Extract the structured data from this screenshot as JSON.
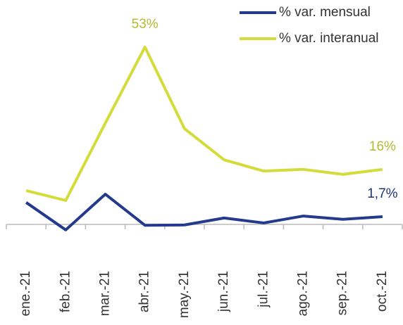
{
  "chart_data": {
    "type": "line",
    "categories": [
      "ene.-21",
      "feb.-21",
      "mar.-21",
      "abr.-21",
      "may.-21",
      "jun.-21",
      "jul.-21",
      "ago.-21",
      "sep.-21",
      "oct.-21"
    ],
    "series": [
      {
        "name": "% var. mensual",
        "color": "#243a8c",
        "values": [
          6,
          -2.3,
          8.5,
          -0.9,
          -0.8,
          1.3,
          -0.2,
          1.9,
          0.9,
          1.7
        ],
        "value_labels": [
          null,
          null,
          null,
          null,
          null,
          null,
          null,
          null,
          null,
          "1,7%"
        ]
      },
      {
        "name": "% var. interanual",
        "color": "#d4dc3a",
        "values": [
          9.6,
          6.6,
          30,
          53,
          28.3,
          18.9,
          15.5,
          16,
          14.5,
          16
        ],
        "value_labels": [
          null,
          null,
          null,
          "53%",
          null,
          null,
          null,
          null,
          null,
          "16%"
        ]
      }
    ],
    "ylim": [
      -5,
      61
    ]
  }
}
